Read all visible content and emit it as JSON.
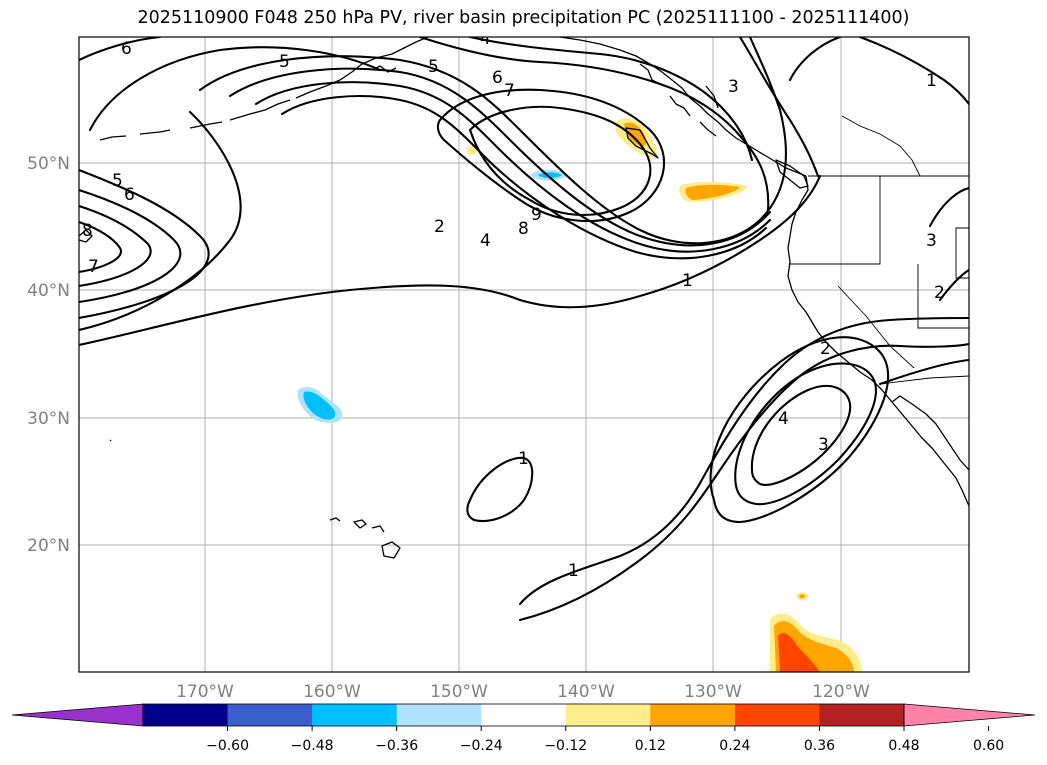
{
  "title": "2025110900 F048 250 hPa PV, river basin precipitation PC (2025111100 - 2025111400)",
  "lat_labels": [
    "50°N",
    "40°N",
    "30°N",
    "20°N"
  ],
  "lon_labels": [
    "170°W",
    "160°W",
    "150°W",
    "140°W",
    "130°W",
    "120°W"
  ],
  "colorbar": {
    "ticks": [
      "−0.60",
      "−0.48",
      "−0.36",
      "−0.24",
      "−0.12",
      "0.12",
      "0.24",
      "0.36",
      "0.48",
      "0.60"
    ],
    "colors": [
      "#9932cc",
      "#00008b",
      "#3a5fcd",
      "#00bfff",
      "#b0e2ff",
      "#ffffff",
      "#ffec8b",
      "#ffa500",
      "#ff4500",
      "#b22222",
      "#ff82ab"
    ]
  },
  "contour_labels": [
    "6",
    "5",
    "4",
    "5",
    "6",
    "7",
    "3",
    "1",
    "5",
    "6",
    "8",
    "7",
    "2",
    "4",
    "8",
    "9",
    "1",
    "3",
    "2",
    "2",
    "4",
    "3",
    "1",
    "1"
  ],
  "colors": {
    "pv_contour": "#000000",
    "grid": "#b0b0b0",
    "axis_label": "#808080"
  }
}
